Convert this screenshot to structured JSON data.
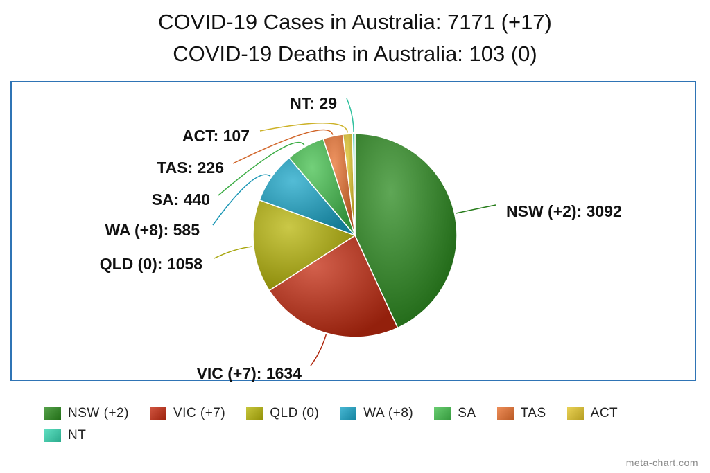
{
  "title": "COVID-19 Cases in Australia: 7171 (+17)",
  "subtitle": "COVID-19 Deaths in Australia: 103 (0)",
  "watermark": "meta-chart.com",
  "chart_data": {
    "type": "pie",
    "categories": [
      "NSW (+2)",
      "VIC (+7)",
      "QLD (0)",
      "WA (+8)",
      "SA",
      "TAS",
      "ACT",
      "NT"
    ],
    "values": [
      3092,
      1634,
      1058,
      585,
      440,
      226,
      107,
      29
    ],
    "slice_labels": [
      "NSW (+2): 3092",
      "VIC (+7): 1634",
      "QLD (0): 1058",
      "WA (+8): 585",
      "SA: 440",
      "TAS: 226",
      "ACT: 107",
      "NT: 29"
    ],
    "colors": [
      "#2a8a1d",
      "#c42b10",
      "#b8b60a",
      "#1aa5c8",
      "#44c04e",
      "#e8702e",
      "#e3c52a",
      "#36d6b0"
    ],
    "legend_position": "bottom"
  }
}
